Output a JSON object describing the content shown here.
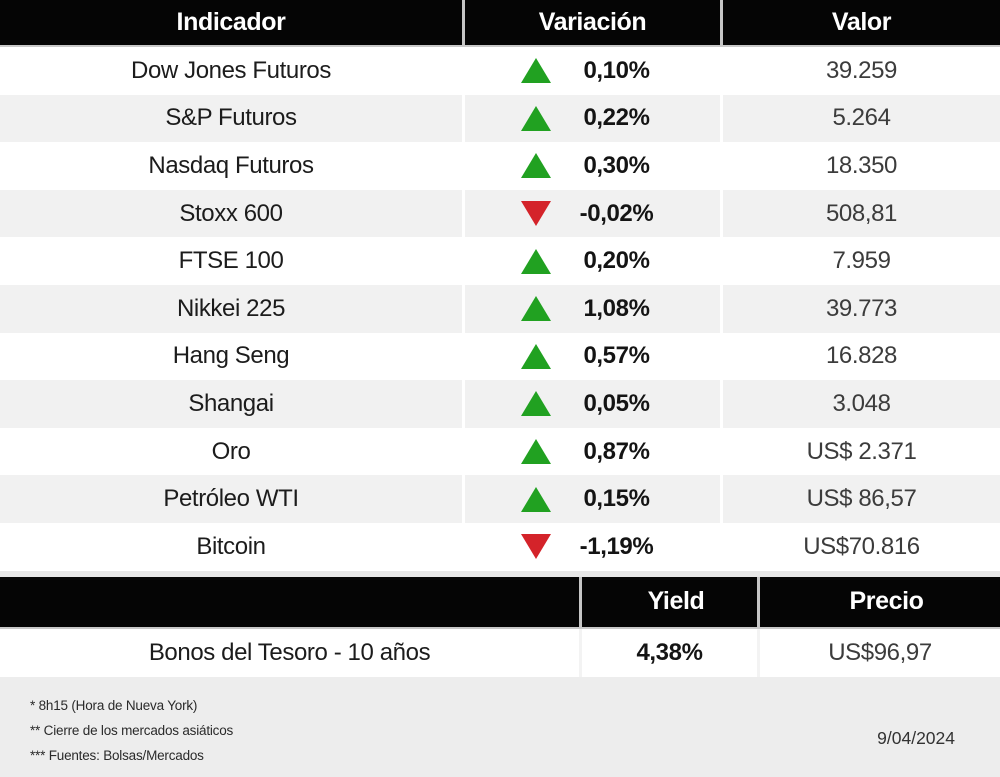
{
  "colors": {
    "up": "#21a121",
    "down": "#d4232a"
  },
  "table1": {
    "headers": [
      "Indicador",
      "Variación",
      "Valor"
    ],
    "rows": [
      {
        "indicator": "Dow Jones Futuros",
        "direction": "up",
        "variation": "0,10%",
        "value": "39.259"
      },
      {
        "indicator": "S&P Futuros",
        "direction": "up",
        "variation": "0,22%",
        "value": "5.264"
      },
      {
        "indicator": "Nasdaq Futuros",
        "direction": "up",
        "variation": "0,30%",
        "value": "18.350"
      },
      {
        "indicator": "Stoxx 600",
        "direction": "down",
        "variation": "-0,02%",
        "value": "508,81"
      },
      {
        "indicator": "FTSE 100",
        "direction": "up",
        "variation": "0,20%",
        "value": "7.959"
      },
      {
        "indicator": "Nikkei 225",
        "direction": "up",
        "variation": "1,08%",
        "value": "39.773"
      },
      {
        "indicator": "Hang Seng",
        "direction": "up",
        "variation": "0,57%",
        "value": "16.828"
      },
      {
        "indicator": "Shangai",
        "direction": "up",
        "variation": "0,05%",
        "value": "3.048"
      },
      {
        "indicator": "Oro",
        "direction": "up",
        "variation": "0,87%",
        "value": "US$ 2.371"
      },
      {
        "indicator": "Petróleo WTI",
        "direction": "up",
        "variation": "0,15%",
        "value": "US$ 86,57"
      },
      {
        "indicator": "Bitcoin",
        "direction": "down",
        "variation": "-1,19%",
        "value": "US$70.816"
      }
    ]
  },
  "table2": {
    "headers": [
      "",
      "Yield",
      "Precio"
    ],
    "row": {
      "indicator": "Bonos del Tesoro - 10 años",
      "yield": "4,38%",
      "price": "US$96,97"
    }
  },
  "footer": {
    "notes": [
      "* 8h15 (Hora de Nueva York)",
      "** Cierre de los mercados asiáticos",
      "*** Fuentes: Bolsas/Mercados"
    ],
    "date": "9/04/2024"
  }
}
